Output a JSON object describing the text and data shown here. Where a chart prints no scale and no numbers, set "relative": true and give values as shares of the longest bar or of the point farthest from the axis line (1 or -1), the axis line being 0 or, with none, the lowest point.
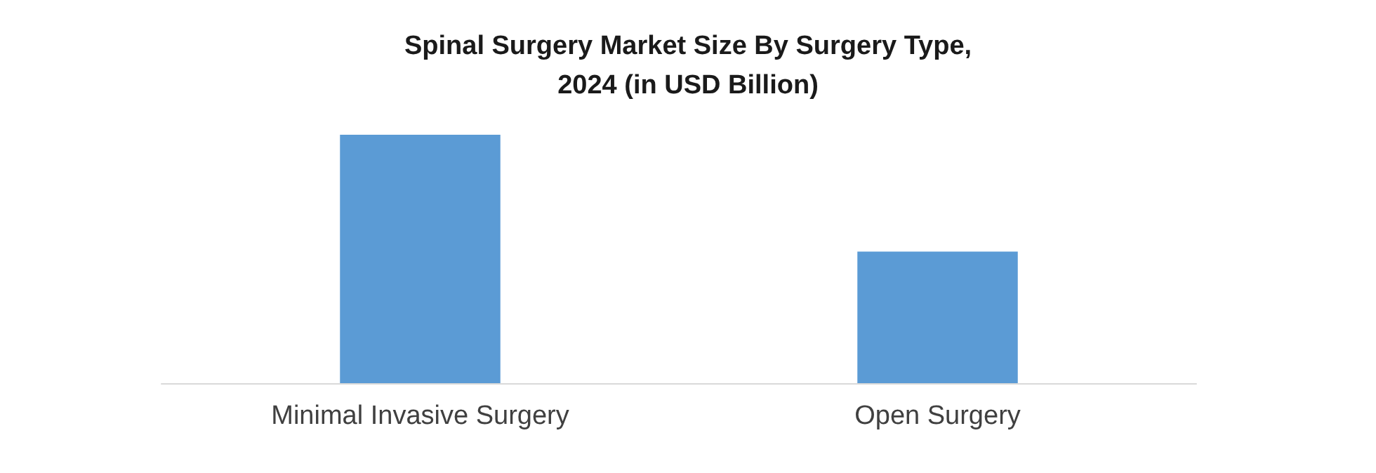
{
  "chart_data": {
    "type": "bar",
    "title": "Spinal Surgery Market Size By Surgery Type,\n2024 (in USD Billion)",
    "categories": [
      "Minimal Invasive Surgery",
      "Open Surgery"
    ],
    "values": [
      1,
      0.53
    ],
    "color": "#5b9bd5",
    "relative": true
  }
}
